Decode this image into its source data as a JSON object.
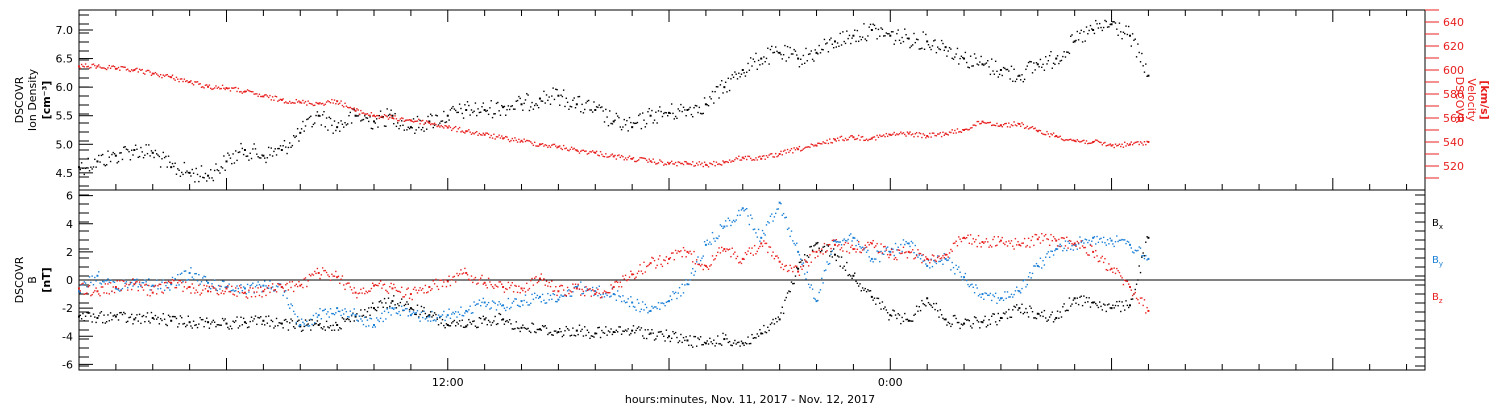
{
  "chart_data": [
    {
      "type": "scatter",
      "panel": "top",
      "left_axis": {
        "label_lines": [
          "DSCOVR",
          "Ion Density"
        ],
        "unit": "[cm⁻³]",
        "range": [
          4.2,
          7.35
        ],
        "ticks": [
          4.5,
          5.0,
          5.5,
          6.0,
          6.5,
          7.0
        ],
        "tick_labels": [
          "4.5",
          "5.0",
          "5.5",
          "6.0",
          "6.5",
          "7.0"
        ],
        "color": "#000000"
      },
      "right_axis": {
        "label_lines": [
          "DSCOVR",
          "Velocity"
        ],
        "unit": "[km/s]",
        "range": [
          500,
          650
        ],
        "ticks": [
          520,
          540,
          560,
          580,
          600,
          620,
          640
        ],
        "tick_labels": [
          "520",
          "540",
          "560",
          "580",
          "600",
          "620",
          "640"
        ],
        "color": "#e8201f"
      },
      "series": [
        {
          "color": "#000000",
          "axis": "left",
          "x": [
            0,
            0.5,
            1,
            1.5,
            2,
            2.5,
            3,
            3.5,
            4,
            4.5,
            5,
            5.5,
            6,
            6.5,
            7,
            7.5,
            8,
            8.5,
            9,
            9.5,
            10,
            10.5,
            11,
            11.5,
            12,
            12.5,
            13,
            13.5,
            14,
            14.5,
            15,
            15.5,
            16,
            16.5,
            17,
            17.5,
            18,
            18.5,
            19,
            19.5,
            20,
            20.5,
            21,
            21.5,
            22,
            22.5,
            23,
            23.5,
            24,
            24.5,
            25,
            25.5,
            26,
            26.5,
            27,
            27.5,
            28,
            28.5,
            29
          ],
          "values": [
            4.6,
            4.7,
            4.8,
            4.9,
            4.85,
            4.6,
            4.5,
            4.45,
            4.7,
            4.9,
            4.8,
            4.9,
            5.2,
            5.5,
            5.3,
            5.5,
            5.4,
            5.5,
            5.3,
            5.4,
            5.5,
            5.6,
            5.6,
            5.65,
            5.7,
            5.8,
            5.85,
            5.7,
            5.6,
            5.4,
            5.3,
            5.5,
            5.55,
            5.6,
            5.7,
            6.0,
            6.3,
            6.5,
            6.6,
            6.5,
            6.6,
            6.8,
            6.9,
            7.0,
            6.9,
            6.85,
            6.8,
            6.7,
            6.5,
            6.4,
            6.3,
            6.2,
            6.4,
            6.5,
            6.8,
            7.0,
            7.1,
            6.9,
            6.2
          ]
        },
        {
          "color": "#e8201f",
          "axis": "right",
          "x": [
            0,
            0.5,
            1,
            1.5,
            2,
            2.5,
            3,
            3.5,
            4,
            4.5,
            5,
            5.5,
            6,
            6.5,
            7,
            7.5,
            8,
            8.5,
            9,
            9.5,
            10,
            10.5,
            11,
            11.5,
            12,
            12.5,
            13,
            13.5,
            14,
            14.5,
            15,
            15.5,
            16,
            16.5,
            17,
            17.5,
            18,
            18.5,
            19,
            19.5,
            20,
            20.5,
            21,
            21.5,
            22,
            22.5,
            23,
            23.5,
            24,
            24.5,
            25,
            25.5,
            26,
            26.5,
            27,
            27.5,
            28,
            28.5,
            29
          ],
          "values": [
            603,
            603,
            601,
            600,
            597,
            594,
            590,
            586,
            585,
            582,
            578,
            575,
            573,
            572,
            574,
            566,
            562,
            560,
            558,
            556,
            552,
            549,
            546,
            543,
            541,
            538,
            536,
            533,
            531,
            528,
            526,
            524,
            522,
            522,
            521,
            523,
            527,
            526,
            530,
            534,
            537,
            542,
            544,
            543,
            546,
            547,
            545,
            547,
            550,
            557,
            554,
            555,
            549,
            545,
            541,
            540,
            537,
            538,
            540
          ]
        }
      ]
    },
    {
      "type": "scatter",
      "panel": "bottom",
      "left_axis": {
        "label_lines": [
          "DSCOVR",
          "B"
        ],
        "unit": "[nT]",
        "range": [
          -6.4,
          6.4
        ],
        "ticks": [
          -6,
          -4,
          -2,
          0,
          2,
          4,
          6
        ],
        "tick_labels": [
          "-6",
          "-4",
          "-2",
          "0",
          "2",
          "4",
          "6"
        ],
        "color": "#000000"
      },
      "zero_line": true,
      "legend": [
        {
          "label": "B",
          "sub": "x",
          "color": "#000000"
        },
        {
          "label": "B",
          "sub": "y",
          "color": "#1a7fd6"
        },
        {
          "label": "B",
          "sub": "z",
          "color": "#e8201f"
        }
      ],
      "series": [
        {
          "color": "#000000",
          "x": [
            0,
            0.5,
            1,
            1.5,
            2,
            2.5,
            3,
            3.5,
            4,
            4.5,
            5,
            5.5,
            6,
            6.5,
            7,
            7.5,
            8,
            8.5,
            9,
            9.5,
            10,
            10.5,
            11,
            11.5,
            12,
            12.5,
            13,
            13.5,
            14,
            14.5,
            15,
            15.5,
            16,
            16.5,
            17,
            17.5,
            18,
            18.5,
            19,
            19.5,
            20,
            20.5,
            21,
            21.5,
            22,
            22.5,
            23,
            23.5,
            24,
            24.5,
            25,
            25.5,
            26,
            26.5,
            27,
            27.5,
            28,
            28.5,
            29
          ],
          "values": [
            -2.6,
            -2.7,
            -2.6,
            -2.8,
            -2.7,
            -2.9,
            -3.0,
            -3.0,
            -3.1,
            -3.0,
            -2.9,
            -3.1,
            -3.3,
            -3.2,
            -3.2,
            -2.6,
            -2.0,
            -1.5,
            -2.0,
            -2.5,
            -3.2,
            -3.3,
            -2.8,
            -2.8,
            -3.4,
            -3.5,
            -3.7,
            -3.6,
            -3.8,
            -3.7,
            -3.6,
            -3.8,
            -4.0,
            -4.3,
            -4.5,
            -4.2,
            -4.5,
            -3.8,
            -2.8,
            0.8,
            2.6,
            1.8,
            0.3,
            -1.2,
            -2.5,
            -2.9,
            -1.3,
            -2.8,
            -3.1,
            -3.0,
            -2.7,
            -2.0,
            -2.4,
            -2.7,
            -1.3,
            -1.6,
            -2.0,
            -1.8,
            3.0
          ]
        },
        {
          "color": "#1a7fd6",
          "x": [
            0,
            0.5,
            1,
            1.5,
            2,
            2.5,
            3,
            3.5,
            4,
            4.5,
            5,
            5.5,
            6,
            6.5,
            7,
            7.5,
            8,
            8.5,
            9,
            9.5,
            10,
            10.5,
            11,
            11.5,
            12,
            12.5,
            13,
            13.5,
            14,
            14.5,
            15,
            15.5,
            16,
            16.5,
            17,
            17.5,
            18,
            18.5,
            19,
            19.5,
            20,
            20.5,
            21,
            21.5,
            22,
            22.5,
            23,
            23.5,
            24,
            24.5,
            25,
            25.5,
            26,
            26.5,
            27,
            27.5,
            28,
            28.5,
            29
          ],
          "values": [
            -0.8,
            0.3,
            -0.6,
            0.0,
            -0.4,
            -0.3,
            0.5,
            -0.2,
            -0.5,
            -0.6,
            -0.4,
            -0.5,
            -3.2,
            -2.5,
            -2.0,
            -2.5,
            -3.2,
            -2.0,
            -2.5,
            -2.6,
            -2.5,
            -2.2,
            -1.6,
            -1.8,
            -1.5,
            -1.2,
            -1.4,
            -0.5,
            -0.8,
            -1.0,
            -1.6,
            -2.2,
            -1.5,
            -0.3,
            2.5,
            3.8,
            5.1,
            3.0,
            5.5,
            2.0,
            -1.5,
            2.8,
            3.0,
            1.5,
            2.0,
            2.6,
            1.0,
            1.5,
            0.2,
            -1.0,
            -1.3,
            -0.8,
            1.0,
            2.2,
            2.5,
            3.0,
            2.8,
            2.5,
            1.5
          ]
        },
        {
          "color": "#e8201f",
          "x": [
            0,
            0.5,
            1,
            1.5,
            2,
            2.5,
            3,
            3.5,
            4,
            4.5,
            5,
            5.5,
            6,
            6.5,
            7,
            7.5,
            8,
            8.5,
            9,
            9.5,
            10,
            10.5,
            11,
            11.5,
            12,
            12.5,
            13,
            13.5,
            14,
            14.5,
            15,
            15.5,
            16,
            16.5,
            17,
            17.5,
            18,
            18.5,
            19,
            19.5,
            20,
            20.5,
            21,
            21.5,
            22,
            22.5,
            23,
            23.5,
            24,
            24.5,
            25,
            25.5,
            26,
            26.5,
            27,
            27.5,
            28,
            28.5,
            29
          ],
          "values": [
            -0.6,
            -0.8,
            -0.5,
            -0.3,
            -0.9,
            -0.2,
            -0.5,
            -0.8,
            -0.6,
            -0.9,
            -0.8,
            -0.5,
            -0.4,
            0.5,
            0.2,
            -0.9,
            -0.4,
            -0.6,
            -1.0,
            -0.5,
            -0.1,
            0.5,
            -0.2,
            -0.5,
            -0.6,
            0.1,
            -0.8,
            -0.6,
            -1.0,
            -0.5,
            0.4,
            1.2,
            1.5,
            2.0,
            1.0,
            2.2,
            1.5,
            2.6,
            1.3,
            0.6,
            2.0,
            2.5,
            2.2,
            2.6,
            1.8,
            2.0,
            1.5,
            1.8,
            3.0,
            2.7,
            2.8,
            2.5,
            2.9,
            2.8,
            2.6,
            2.0,
            0.8,
            -0.5,
            -2.2
          ]
        }
      ]
    }
  ],
  "x_axis": {
    "range": [
      0,
      36.5
    ],
    "tick_labels": [
      {
        "x": 10,
        "label": "12:00"
      },
      {
        "x": 22,
        "label": "0:00"
      }
    ],
    "title": "hours:minutes, Nov. 11, 2017 - Nov. 12, 2017"
  }
}
